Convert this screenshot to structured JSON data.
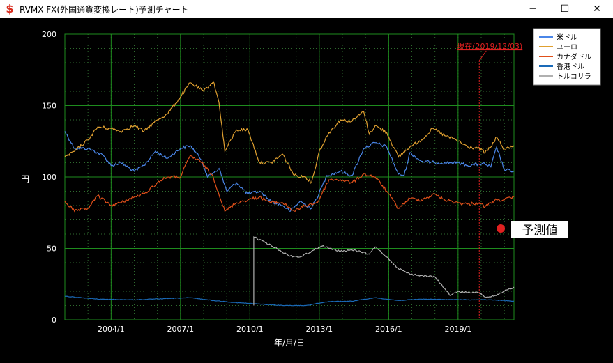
{
  "window": {
    "title": "RVMX FX(外国通貨変換レート)予測チャート",
    "icon": "dollar-sign-icon",
    "minimize_glyph": "─",
    "maximize_glyph": "☐",
    "close_glyph": "✕"
  },
  "chart_data": {
    "type": "line",
    "title": "",
    "xlabel": "年/月/日",
    "ylabel": "円",
    "ylim": [
      0,
      200
    ],
    "y_ticks": [
      0,
      50,
      100,
      150,
      200
    ],
    "xlim": [
      "2002-01",
      "2021-06"
    ],
    "x_ticks": [
      {
        "label": "2004/1",
        "date": "2004-01"
      },
      {
        "label": "2007/1",
        "date": "2007-01"
      },
      {
        "label": "2010/1",
        "date": "2010-01"
      },
      {
        "label": "2013/1",
        "date": "2013-01"
      },
      {
        "label": "2016/1",
        "date": "2016-01"
      },
      {
        "label": "2019/1",
        "date": "2019-01"
      }
    ],
    "grid": true,
    "legend_position": "top-right",
    "current_marker": {
      "label": "現在(2019/12/03)",
      "date": "2019-12"
    },
    "forecast_label": "予測値",
    "series": [
      {
        "name": "米ドル",
        "color": "#4a86e8",
        "points": [
          [
            "2002-01",
            132
          ],
          [
            "2002-06",
            120
          ],
          [
            "2003-01",
            120
          ],
          [
            "2003-09",
            115
          ],
          [
            "2004-01",
            108
          ],
          [
            "2004-06",
            110
          ],
          [
            "2005-01",
            104
          ],
          [
            "2005-06",
            108
          ],
          [
            "2005-12",
            118
          ],
          [
            "2006-06",
            113
          ],
          [
            "2007-01",
            120
          ],
          [
            "2007-06",
            122
          ],
          [
            "2007-12",
            112
          ],
          [
            "2008-03",
            100
          ],
          [
            "2008-09",
            106
          ],
          [
            "2009-01",
            90
          ],
          [
            "2009-06",
            96
          ],
          [
            "2009-12",
            88
          ],
          [
            "2010-06",
            90
          ],
          [
            "2010-12",
            83
          ],
          [
            "2011-06",
            80
          ],
          [
            "2011-10",
            76
          ],
          [
            "2012-03",
            83
          ],
          [
            "2012-09",
            78
          ],
          [
            "2013-01",
            89
          ],
          [
            "2013-05",
            101
          ],
          [
            "2013-12",
            104
          ],
          [
            "2014-06",
            101
          ],
          [
            "2014-12",
            120
          ],
          [
            "2015-06",
            124
          ],
          [
            "2015-12",
            121
          ],
          [
            "2016-06",
            102
          ],
          [
            "2016-09",
            101
          ],
          [
            "2016-12",
            117
          ],
          [
            "2017-06",
            111
          ],
          [
            "2018-01",
            110
          ],
          [
            "2018-06",
            110
          ],
          [
            "2019-01",
            110
          ],
          [
            "2019-06",
            108
          ],
          [
            "2019-12",
            109
          ],
          [
            "2020-03",
            109
          ],
          [
            "2020-06",
            107
          ],
          [
            "2020-09",
            121
          ],
          [
            "2021-01",
            105
          ],
          [
            "2021-06",
            104
          ]
        ]
      },
      {
        "name": "ユーロ",
        "color": "#e0a030",
        "points": [
          [
            "2002-01",
            114
          ],
          [
            "2002-06",
            118
          ],
          [
            "2003-01",
            126
          ],
          [
            "2003-06",
            135
          ],
          [
            "2004-01",
            134
          ],
          [
            "2004-06",
            132
          ],
          [
            "2005-01",
            136
          ],
          [
            "2005-06",
            132
          ],
          [
            "2006-01",
            140
          ],
          [
            "2006-06",
            144
          ],
          [
            "2007-01",
            156
          ],
          [
            "2007-06",
            166
          ],
          [
            "2008-01",
            160
          ],
          [
            "2008-06",
            167
          ],
          [
            "2008-09",
            152
          ],
          [
            "2008-12",
            118
          ],
          [
            "2009-06",
            133
          ],
          [
            "2009-12",
            133
          ],
          [
            "2010-06",
            110
          ],
          [
            "2010-12",
            110
          ],
          [
            "2011-06",
            116
          ],
          [
            "2011-12",
            101
          ],
          [
            "2012-06",
            100
          ],
          [
            "2012-09",
            96
          ],
          [
            "2013-01",
            118
          ],
          [
            "2013-06",
            131
          ],
          [
            "2013-12",
            140
          ],
          [
            "2014-06",
            139
          ],
          [
            "2014-12",
            146
          ],
          [
            "2015-03",
            130
          ],
          [
            "2015-06",
            136
          ],
          [
            "2015-12",
            131
          ],
          [
            "2016-06",
            114
          ],
          [
            "2016-12",
            121
          ],
          [
            "2017-06",
            126
          ],
          [
            "2017-12",
            134
          ],
          [
            "2018-06",
            129
          ],
          [
            "2018-12",
            126
          ],
          [
            "2019-06",
            121
          ],
          [
            "2019-12",
            120
          ],
          [
            "2020-03",
            117
          ],
          [
            "2020-06",
            121
          ],
          [
            "2020-09",
            128
          ],
          [
            "2021-01",
            119
          ],
          [
            "2021-06",
            122
          ]
        ]
      },
      {
        "name": "カナダドル",
        "color": "#e0501a",
        "points": [
          [
            "2002-01",
            83
          ],
          [
            "2002-06",
            76
          ],
          [
            "2003-01",
            78
          ],
          [
            "2003-06",
            87
          ],
          [
            "2004-01",
            80
          ],
          [
            "2004-06",
            82
          ],
          [
            "2005-01",
            86
          ],
          [
            "2005-06",
            88
          ],
          [
            "2006-01",
            96
          ],
          [
            "2006-06",
            100
          ],
          [
            "2007-01",
            100
          ],
          [
            "2007-06",
            115
          ],
          [
            "2007-12",
            110
          ],
          [
            "2008-06",
            100
          ],
          [
            "2008-12",
            76
          ],
          [
            "2009-06",
            82
          ],
          [
            "2009-12",
            84
          ],
          [
            "2010-06",
            86
          ],
          [
            "2010-12",
            82
          ],
          [
            "2011-06",
            82
          ],
          [
            "2011-12",
            76
          ],
          [
            "2012-06",
            80
          ],
          [
            "2012-12",
            82
          ],
          [
            "2013-06",
            98
          ],
          [
            "2013-12",
            98
          ],
          [
            "2014-06",
            96
          ],
          [
            "2014-12",
            102
          ],
          [
            "2015-06",
            100
          ],
          [
            "2015-12",
            90
          ],
          [
            "2016-06",
            78
          ],
          [
            "2016-12",
            85
          ],
          [
            "2017-06",
            84
          ],
          [
            "2018-01",
            88
          ],
          [
            "2018-06",
            84
          ],
          [
            "2019-01",
            82
          ],
          [
            "2019-06",
            81
          ],
          [
            "2019-12",
            82
          ],
          [
            "2020-03",
            79
          ],
          [
            "2020-06",
            82
          ],
          [
            "2020-09",
            84
          ],
          [
            "2021-01",
            84
          ],
          [
            "2021-06",
            86
          ]
        ]
      },
      {
        "name": "香港ドル",
        "color": "#1a6ab8",
        "points": [
          [
            "2002-01",
            16.5
          ],
          [
            "2003-06",
            14.5
          ],
          [
            "2005-01",
            14
          ],
          [
            "2007-06",
            15.5
          ],
          [
            "2008-06",
            13.5
          ],
          [
            "2009-06",
            12
          ],
          [
            "2010-06",
            11
          ],
          [
            "2011-06",
            10
          ],
          [
            "2012-06",
            10
          ],
          [
            "2013-06",
            12.8
          ],
          [
            "2014-06",
            13
          ],
          [
            "2015-06",
            15.5
          ],
          [
            "2016-06",
            13.5
          ],
          [
            "2017-06",
            14.5
          ],
          [
            "2018-06",
            14.2
          ],
          [
            "2019-06",
            14
          ],
          [
            "2019-12",
            14
          ],
          [
            "2020-06",
            14
          ],
          [
            "2021-06",
            13
          ]
        ]
      },
      {
        "name": "トルコリラ",
        "color": "#b0b0b0",
        "points": [
          [
            "2010-03",
            10
          ],
          [
            "2010-03",
            58
          ],
          [
            "2010-09",
            54
          ],
          [
            "2011-03",
            50
          ],
          [
            "2011-09",
            45
          ],
          [
            "2012-03",
            44
          ],
          [
            "2012-09",
            48
          ],
          [
            "2013-03",
            52
          ],
          [
            "2013-06",
            50
          ],
          [
            "2013-12",
            48
          ],
          [
            "2014-06",
            49
          ],
          [
            "2015-03",
            46
          ],
          [
            "2015-06",
            51
          ],
          [
            "2015-12",
            44
          ],
          [
            "2016-06",
            36
          ],
          [
            "2016-12",
            32
          ],
          [
            "2017-06",
            31
          ],
          [
            "2018-01",
            30
          ],
          [
            "2018-06",
            22
          ],
          [
            "2018-09",
            17
          ],
          [
            "2019-01",
            20
          ],
          [
            "2019-06",
            19
          ],
          [
            "2019-12",
            19
          ],
          [
            "2020-03",
            16
          ],
          [
            "2020-06",
            16
          ],
          [
            "2020-09",
            17
          ],
          [
            "2021-01",
            20
          ],
          [
            "2021-06",
            23
          ]
        ]
      }
    ]
  }
}
